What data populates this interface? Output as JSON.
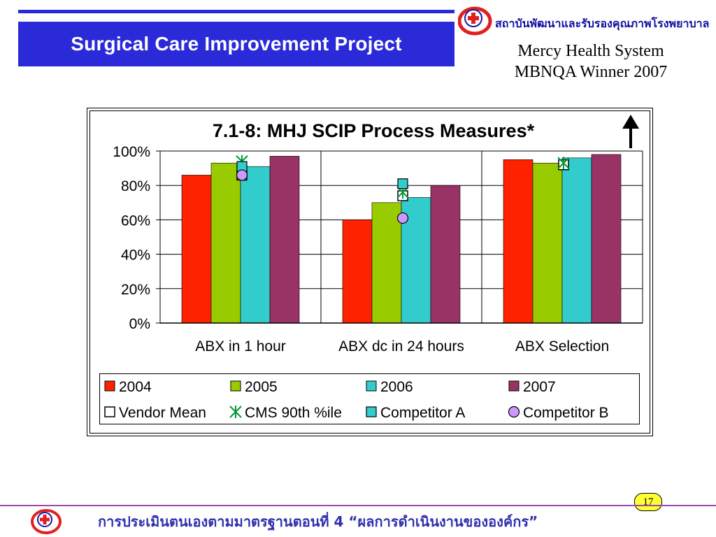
{
  "slide": {
    "title": "Surgical Care Improvement Project",
    "org_name": "สถาบันพัฒนาและรับรองคุณภาพโรงพยาบาล",
    "subtitle_line1": "Mercy Health System",
    "subtitle_line2": "MBNQA Winner 2007",
    "page_number": "17",
    "footer": "การประเมินตนเองตามมาตรฐานตอนที่ 4 “ผลการดำเนินงานขององค์กร”",
    "logo_icon": "red-cross-ribbon-icon",
    "up_arrow_icon": "up-arrow-icon"
  },
  "chart_data": {
    "type": "bar",
    "title": "7.1-8: MHJ SCIP Process Measures*",
    "xlabel": "",
    "ylabel": "",
    "ylim": [
      0,
      100
    ],
    "yticks": [
      "0%",
      "20%",
      "40%",
      "60%",
      "80%",
      "100%"
    ],
    "grid": true,
    "legend_position": "bottom",
    "categories": [
      "ABX in 1 hour",
      "ABX dc in 24 hours",
      "ABX Selection"
    ],
    "series": [
      {
        "name": "2004",
        "color": "#ff2200",
        "values": [
          86,
          60,
          95
        ]
      },
      {
        "name": "2005",
        "color": "#99cc00",
        "values": [
          93,
          70,
          93
        ]
      },
      {
        "name": "2006",
        "color": "#33cccc",
        "values": [
          91,
          73,
          96
        ]
      },
      {
        "name": "2007",
        "color": "#993366",
        "values": [
          97,
          80,
          98
        ]
      }
    ],
    "markers": [
      {
        "name": "Vendor Mean",
        "shape": "open-square",
        "color": "#ffffff",
        "values": [
          86,
          74,
          92
        ]
      },
      {
        "name": "CMS 90th %ile",
        "shape": "asterisk",
        "color": "#009933",
        "values": [
          94,
          76,
          93
        ]
      },
      {
        "name": "Competitor A",
        "shape": "filled-square",
        "color": "#33cccc",
        "values": [
          91,
          81,
          null
        ]
      },
      {
        "name": "Competitor B",
        "shape": "circle",
        "color": "#cc99ff",
        "values": [
          86,
          61,
          null
        ]
      }
    ]
  }
}
